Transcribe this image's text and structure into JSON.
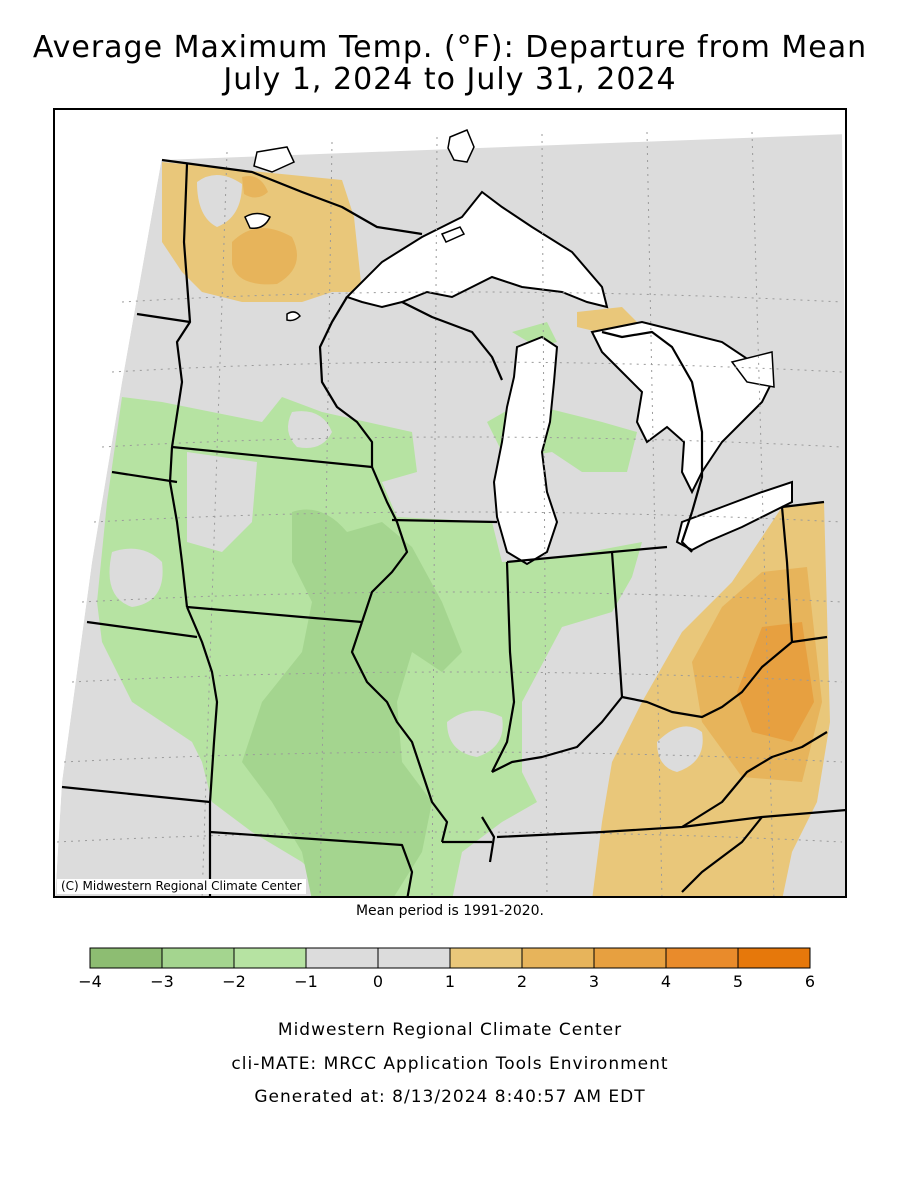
{
  "title": {
    "line1": "Average Maximum Temp. (°F): Departure from Mean",
    "line2": "July 1, 2024 to July 31, 2024"
  },
  "map": {
    "copyright": "(C) Midwestern Regional Climate Center",
    "mean_period": "Mean period is 1991-2020.",
    "colors": {
      "land_neutral": "#dcdcdc",
      "water": "#ffffff",
      "border": "#000000",
      "graticule": "#9a9a9a"
    }
  },
  "legend": {
    "colors": [
      "#8dbd72",
      "#a4d58f",
      "#b6e3a2",
      "#dcdcdc",
      "#dcdcdc",
      "#e9c77a",
      "#e7b45b",
      "#e7a040",
      "#e98b2b",
      "#e6780b"
    ],
    "labels": [
      "−4",
      "−3",
      "−2",
      "−1",
      "0",
      "1",
      "2",
      "3",
      "4",
      "5",
      "6"
    ]
  },
  "footer": {
    "line1": "Midwestern Regional Climate Center",
    "line2": "cli-MATE: MRCC Application Tools Environment",
    "line3": "Generated at: 8/13/2024 8:40:57 AM EDT"
  }
}
